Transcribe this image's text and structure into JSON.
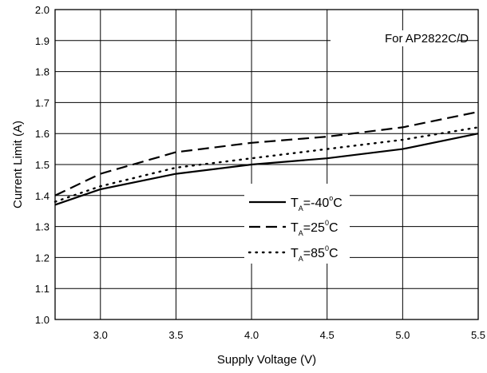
{
  "chart_data": {
    "type": "line",
    "title": "",
    "xlabel": "Supply Voltage (V)",
    "ylabel": "Current Limit (A)",
    "xlim": [
      2.7,
      5.5
    ],
    "ylim": [
      1.0,
      2.0
    ],
    "xticks": [
      3.0,
      3.5,
      4.0,
      4.5,
      5.0,
      5.5
    ],
    "xtick_labels": [
      "3.0",
      "3.5",
      "4.0",
      "4.5",
      "5.0",
      "5.5"
    ],
    "yticks": [
      1.0,
      1.1,
      1.2,
      1.3,
      1.4,
      1.5,
      1.6,
      1.7,
      1.8,
      1.9,
      2.0
    ],
    "ytick_labels": [
      "1.0",
      "1.1",
      "1.2",
      "1.3",
      "1.4",
      "1.5",
      "1.6",
      "1.7",
      "1.8",
      "1.9",
      "2.0"
    ],
    "grid": true,
    "annotation": "For AP2822C/D",
    "legend_position": "center-right",
    "series": [
      {
        "name": "T_A=-40°C",
        "legend": {
          "t": "T",
          "sub": "A",
          "mid": "=-40",
          "sup": "o",
          "unit": "C"
        },
        "style": "solid",
        "x": [
          2.7,
          3.0,
          3.5,
          4.0,
          4.5,
          5.0,
          5.5
        ],
        "y": [
          1.37,
          1.42,
          1.47,
          1.5,
          1.52,
          1.55,
          1.6
        ]
      },
      {
        "name": "T_A=25°C",
        "legend": {
          "t": "T",
          "sub": "A",
          "mid": "=25",
          "sup": "0",
          "unit": "C"
        },
        "style": "dashed",
        "x": [
          2.7,
          3.0,
          3.5,
          4.0,
          4.5,
          5.0,
          5.5
        ],
        "y": [
          1.4,
          1.47,
          1.54,
          1.57,
          1.59,
          1.62,
          1.67
        ]
      },
      {
        "name": "T_A=85°C",
        "legend": {
          "t": "T",
          "sub": "A",
          "mid": "=85",
          "sup": "0",
          "unit": "C"
        },
        "style": "dotted",
        "x": [
          2.7,
          3.0,
          3.5,
          4.0,
          4.5,
          5.0,
          5.5
        ],
        "y": [
          1.38,
          1.43,
          1.49,
          1.52,
          1.55,
          1.58,
          1.62
        ]
      }
    ]
  }
}
